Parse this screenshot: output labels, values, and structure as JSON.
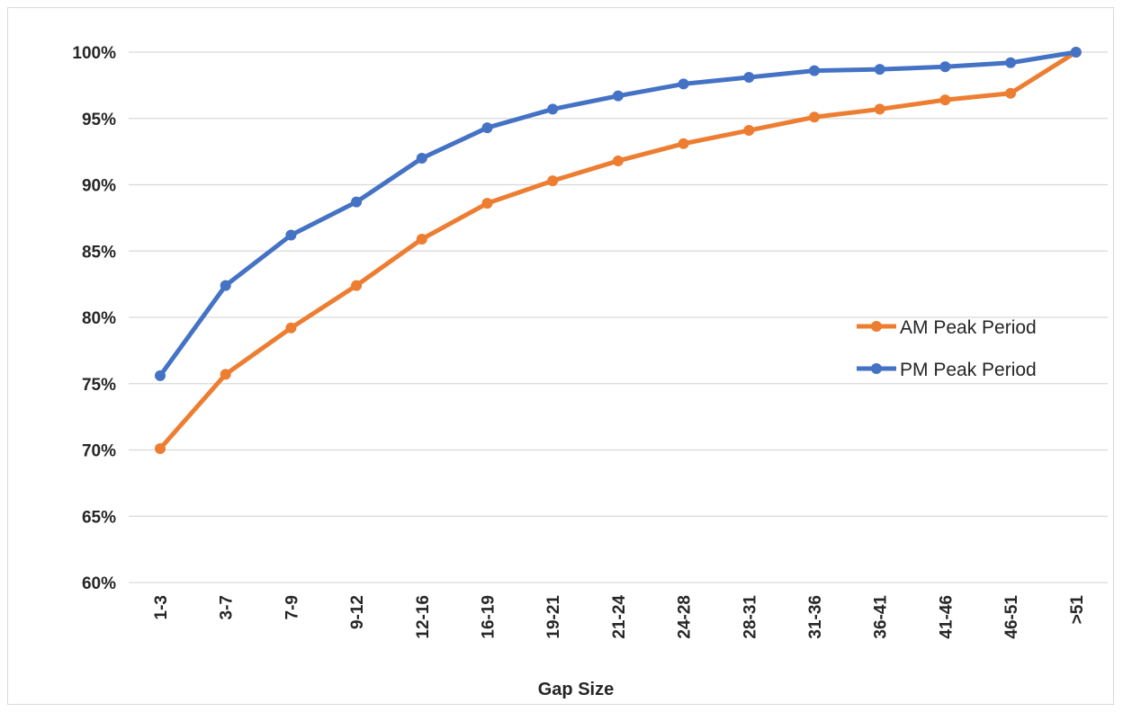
{
  "chart_data": {
    "type": "line",
    "title": "",
    "xlabel": "Gap Size",
    "ylabel": "",
    "categories": [
      "1-3",
      "3-7",
      "7-9",
      "9-12",
      "12-16",
      "16-19",
      "19-21",
      "21-24",
      "24-28",
      "28-31",
      "31-36",
      "36-41",
      "41-46",
      "46-51",
      ">51"
    ],
    "yticks": [
      "60%",
      "65%",
      "70%",
      "75%",
      "80%",
      "85%",
      "90%",
      "95%",
      "100%"
    ],
    "ylim": [
      60,
      100
    ],
    "y_unit": "%",
    "grid": true,
    "legend_position": "right",
    "series": [
      {
        "name": "AM Peak Period",
        "color": "#ED7D31",
        "values": [
          70.1,
          75.7,
          79.2,
          82.4,
          85.9,
          88.6,
          90.3,
          91.8,
          93.1,
          94.1,
          95.1,
          95.7,
          96.4,
          96.9,
          100.0
        ]
      },
      {
        "name": "PM Peak Period",
        "color": "#4472C4",
        "values": [
          75.6,
          82.4,
          86.2,
          88.7,
          92.0,
          94.3,
          95.7,
          96.7,
          97.6,
          98.1,
          98.6,
          98.7,
          98.9,
          99.2,
          100.0
        ]
      }
    ]
  }
}
